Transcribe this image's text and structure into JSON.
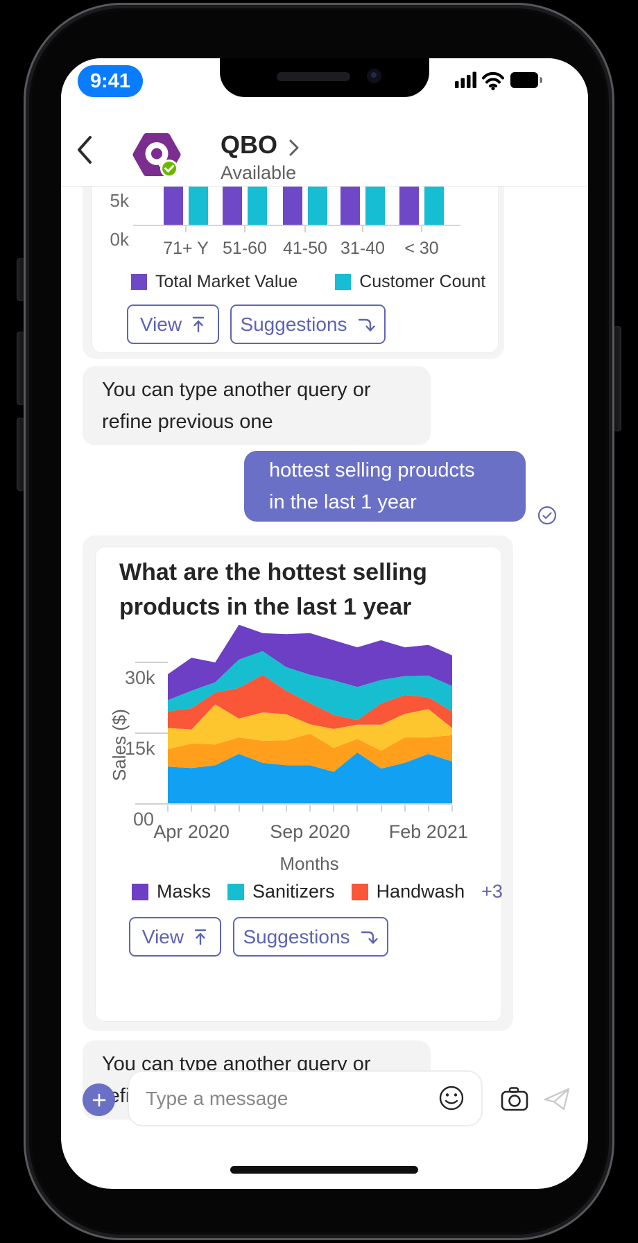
{
  "status_bar": {
    "time": "9:41",
    "icons": [
      "cellular-signal-icon",
      "wifi-icon",
      "battery-icon"
    ],
    "time_pill_color": "#0a7cff"
  },
  "header": {
    "title": "QBO",
    "presence": "Available"
  },
  "conversation": {
    "bot_hint_1": "You can type another query or\nrefine previous one",
    "user_message": "hottest selling proudcts\nin the last 1 year",
    "bot_hint_2": "You can type another query or\nrefine previous one"
  },
  "cards": [
    {
      "buttons": [
        {
          "label": "View",
          "icon": "arrow-up-from-bar-icon"
        },
        {
          "label": "Suggestions",
          "icon": "arrow-curve-down-icon"
        }
      ]
    },
    {
      "title": "What are the hottest selling\nproducts in the last 1 year",
      "buttons": [
        {
          "label": "View",
          "icon": "arrow-up-from-bar-icon"
        },
        {
          "label": "Suggestions",
          "icon": "arrow-curve-down-icon"
        }
      ]
    }
  ],
  "composer": {
    "placeholder": "Type a message",
    "icons": [
      "add-icon",
      "emoji-icon",
      "camera-icon",
      "send-icon"
    ]
  },
  "colors": {
    "accent": "#5d63b3",
    "user_bubble": "#6a70c6",
    "bot_bubble": "#f3f3f3",
    "avatar_purple": "#7b2d90",
    "presence_green": "#6bb700"
  },
  "chart_data": [
    {
      "type": "bar",
      "categories": [
        "71+ Y",
        "51-60",
        "41-50",
        "31-40",
        "< 30"
      ],
      "series": [
        {
          "name": "Total Market Value",
          "color": "#6f48c8",
          "values": [
            null,
            null,
            null,
            null,
            null
          ]
        },
        {
          "name": "Customer Count",
          "color": "#16bdd3",
          "values": [
            null,
            null,
            null,
            null,
            null
          ]
        }
      ],
      "y_ticks": [
        {
          "label": "5k",
          "value": 5000
        },
        {
          "label": "0k",
          "value": 0
        }
      ],
      "note": "bar tops clipped above visible scroll area; every bar exceeds 5k",
      "grid": false,
      "legend_position": "bottom"
    },
    {
      "type": "area",
      "stacked": true,
      "x_points": 13,
      "x_tick_labels": [
        {
          "label": "Apr 2020",
          "index": 1
        },
        {
          "label": "Sep 2020",
          "index": 6
        },
        {
          "label": "Feb 2021",
          "index": 11
        }
      ],
      "xlabel": "Months",
      "ylabel": "Sales ($)",
      "y_ticks": [
        {
          "label": "00",
          "value": 0
        },
        {
          "label": "15k",
          "value": 15000
        },
        {
          "label": "30k",
          "value": 30000
        }
      ],
      "ylim": [
        0,
        42000
      ],
      "series_bottom_to_top": [
        {
          "name": null,
          "color": "#12a0f3",
          "values_k": [
            7.9,
            7.6,
            8.2,
            10.6,
            8.7,
            8.2,
            8.2,
            6.8,
            10.9,
            7.5,
            8.7,
            10.6,
            9.0
          ]
        },
        {
          "name": null,
          "color": "#ff9f1c",
          "values_k": [
            3.7,
            5.2,
            4.4,
            3.5,
            4.7,
            5.3,
            6.7,
            5.1,
            2.9,
            3.8,
            5.4,
            3.5,
            5.6
          ]
        },
        {
          "name": null,
          "color": "#fdc62f",
          "values_k": [
            4.5,
            3.0,
            8.5,
            4.0,
            6.0,
            5.5,
            2.0,
            4.0,
            3.0,
            5.5,
            5.0,
            6.0,
            1.5
          ]
        },
        {
          "name": "Handwash",
          "color": "#f95738",
          "values_k": [
            3.5,
            4.5,
            2.5,
            6.5,
            8.0,
            5.0,
            4.5,
            3.0,
            1.0,
            4.5,
            4.0,
            2.5,
            3.5
          ]
        },
        {
          "name": "Sanitizers",
          "color": "#17becf",
          "values_k": [
            2.4,
            3.7,
            2.2,
            6.0,
            5.0,
            5.0,
            6.0,
            7.3,
            7.0,
            5.0,
            4.0,
            4.6,
            5.4
          ]
        },
        {
          "name": "Masks",
          "color": "#6c3fc5",
          "values_k": [
            5.5,
            7.0,
            4.2,
            7.4,
            3.8,
            7.0,
            8.8,
            8.5,
            8.4,
            8.4,
            6.1,
            6.5,
            6.5
          ]
        }
      ],
      "legend": [
        {
          "label": "Masks",
          "color": "#6c3fc5"
        },
        {
          "label": "Sanitizers",
          "color": "#17becf"
        },
        {
          "label": "Handwash",
          "color": "#f95738"
        }
      ],
      "legend_overflow": "+3"
    }
  ]
}
